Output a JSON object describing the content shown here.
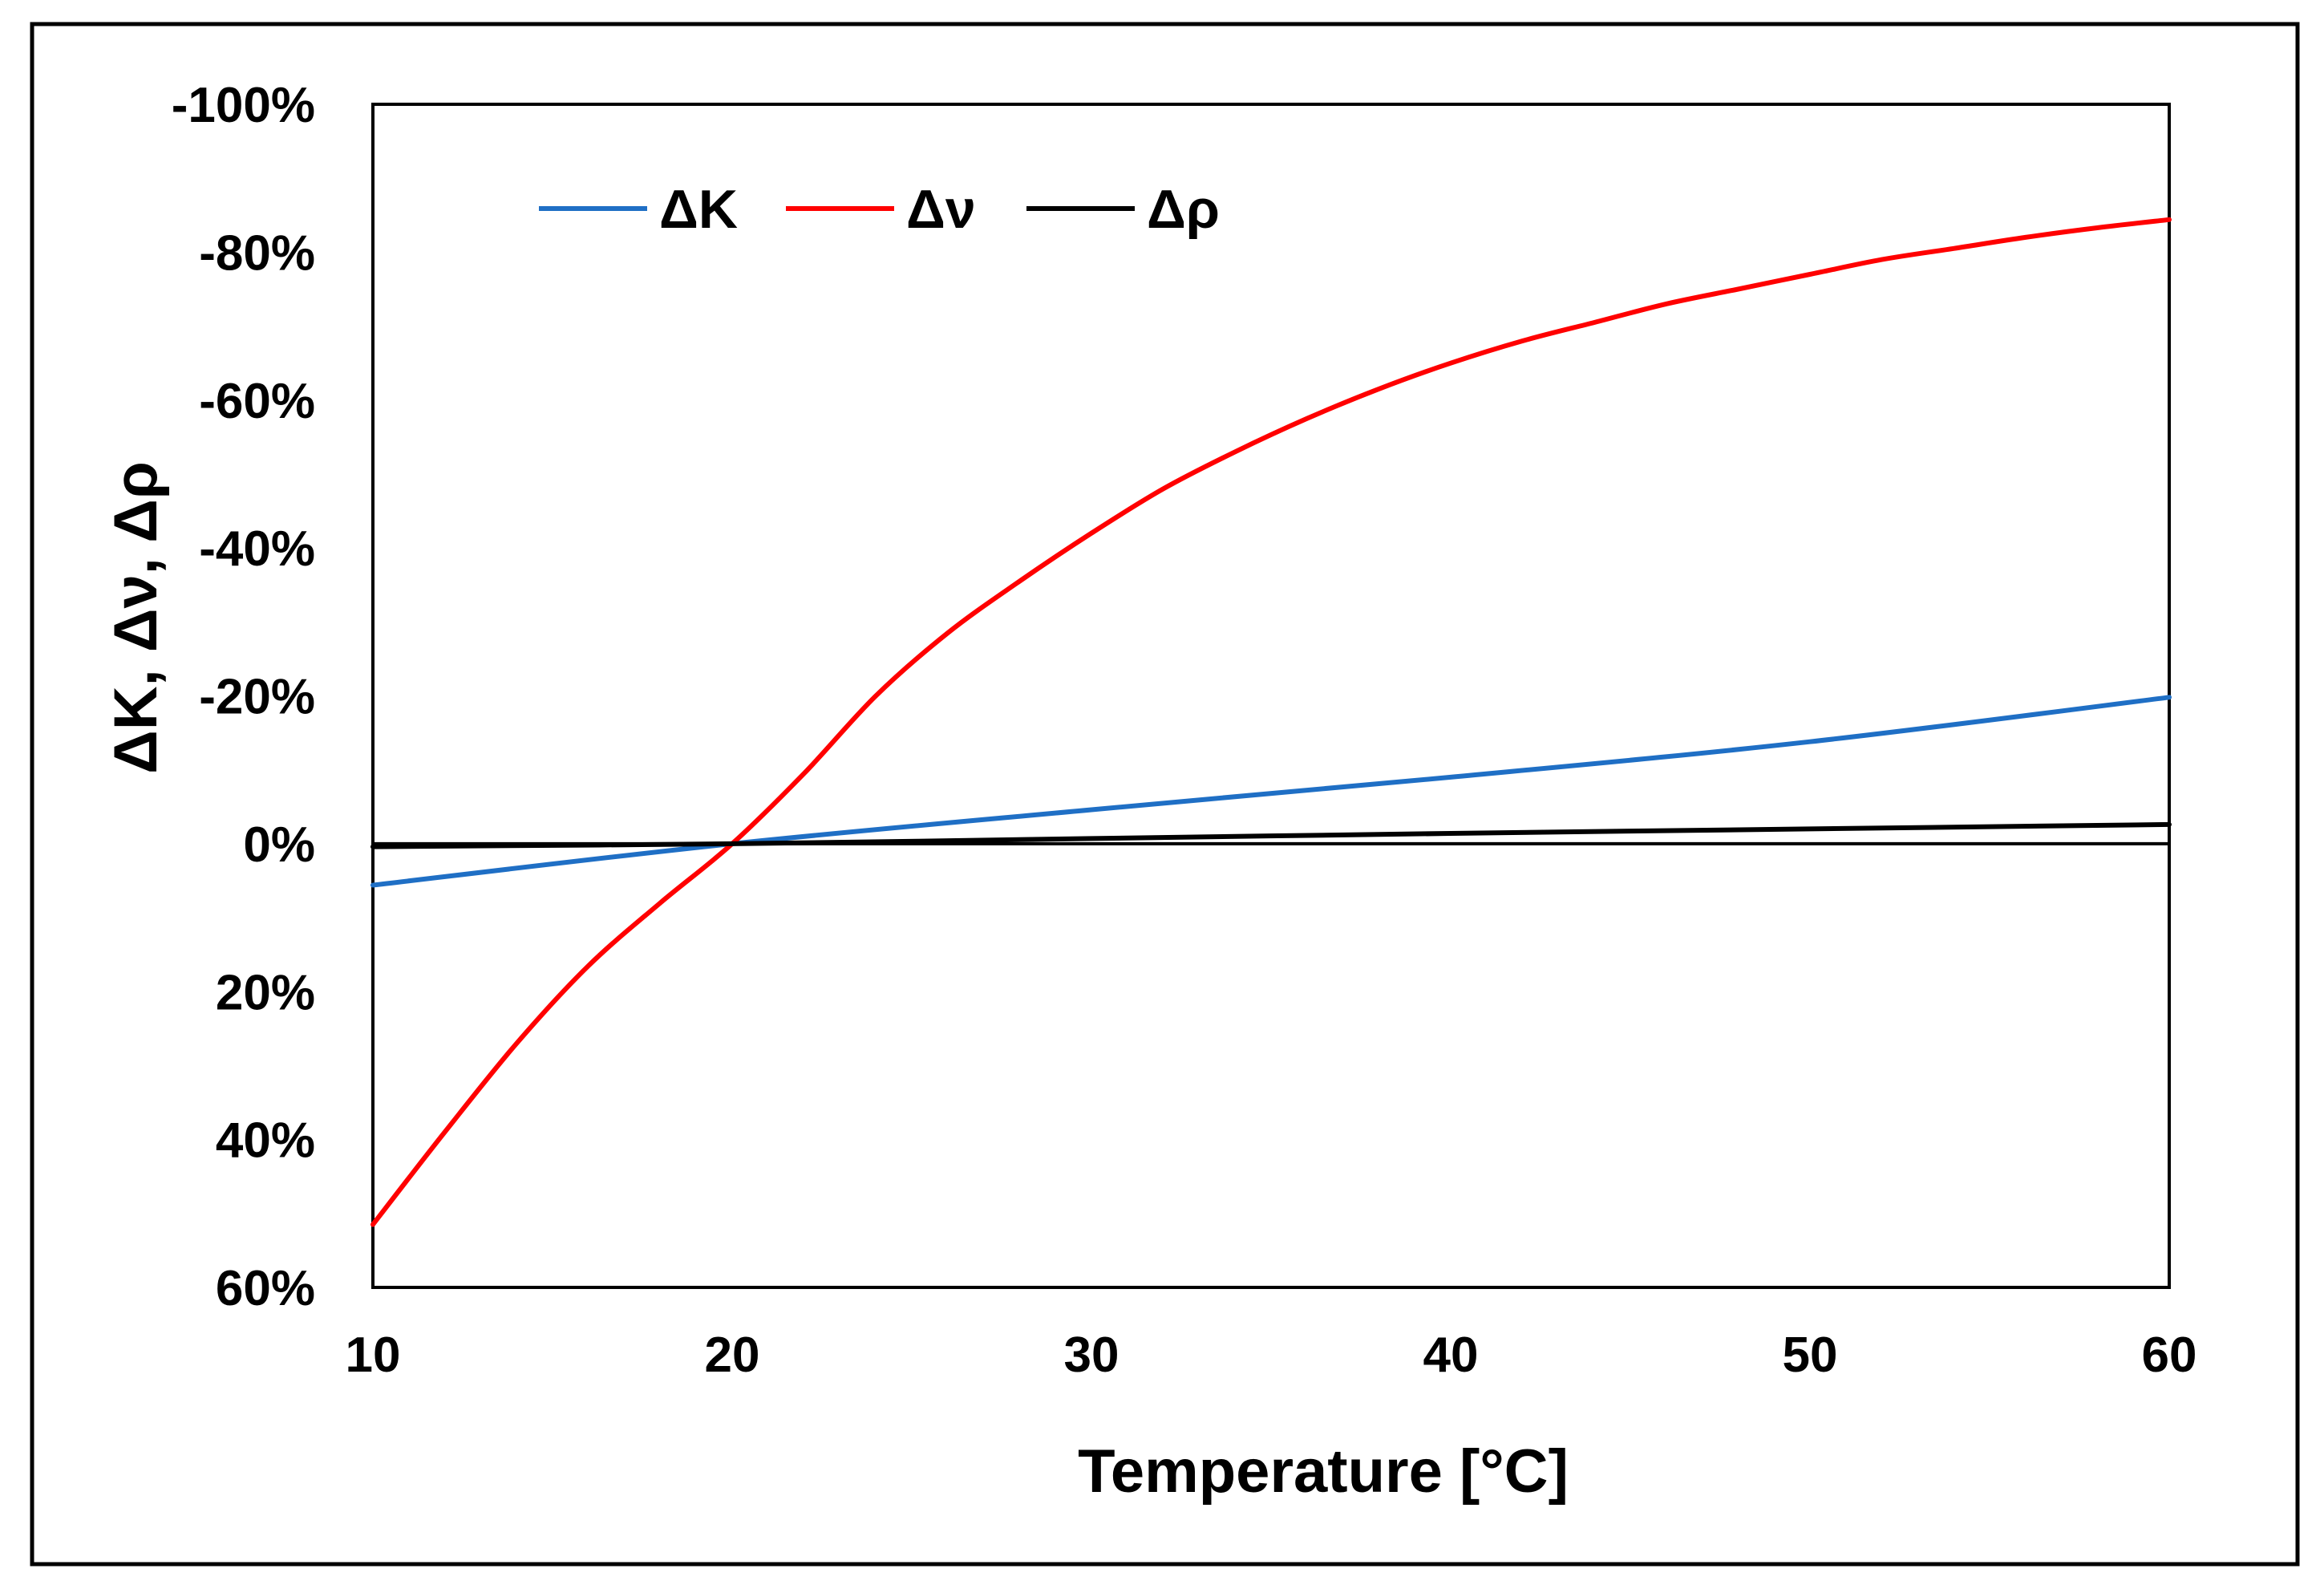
{
  "chart_data": {
    "type": "line",
    "title": "",
    "xlabel": "Temperature [°C]",
    "ylabel": "ΔK, Δν, Δρ",
    "xlim": [
      10,
      60
    ],
    "ylim": [
      -100,
      60
    ],
    "y_inverted": true,
    "x_ticks": [
      10,
      20,
      30,
      40,
      50,
      60
    ],
    "x_tick_labels": [
      "10",
      "20",
      "30",
      "40",
      "50",
      "60"
    ],
    "y_ticks": [
      -100,
      -80,
      -60,
      -40,
      -20,
      0,
      20,
      40,
      60
    ],
    "y_tick_labels": [
      "-100%",
      "-80%",
      "-60%",
      "-40%",
      "-20%",
      "0%",
      "20%",
      "40%",
      "60%"
    ],
    "grid": false,
    "legend_position": "top-left",
    "reference_line": {
      "y": 0,
      "color": "#000000"
    },
    "series": [
      {
        "name": "ΔK",
        "color": "#1f6fc5",
        "x": [
          10,
          20,
          30,
          40,
          50,
          60
        ],
        "y": [
          5.6,
          0,
          -4.6,
          -9,
          -13.8,
          -19.8
        ]
      },
      {
        "name": "Δν",
        "color": "#ff0000",
        "x": [
          10,
          12,
          14,
          16,
          18,
          20,
          22,
          24,
          26,
          28,
          30,
          32,
          34,
          36,
          38,
          40,
          42,
          44,
          46,
          48,
          50,
          52,
          54,
          56,
          58,
          60
        ],
        "y": [
          51.5,
          39,
          27,
          16.5,
          8,
          0,
          -9.5,
          -20,
          -28.5,
          -35.5,
          -42,
          -48,
          -53,
          -57.5,
          -61.5,
          -65,
          -68,
          -70.5,
          -73,
          -75,
          -77,
          -79,
          -80.5,
          -82,
          -83.3,
          -84.4
        ]
      },
      {
        "name": "Δρ",
        "color": "#000000",
        "x": [
          10,
          20,
          30,
          40,
          50,
          60
        ],
        "y": [
          0.4,
          0,
          -0.7,
          -1.4,
          -2,
          -2.6
        ]
      }
    ]
  }
}
